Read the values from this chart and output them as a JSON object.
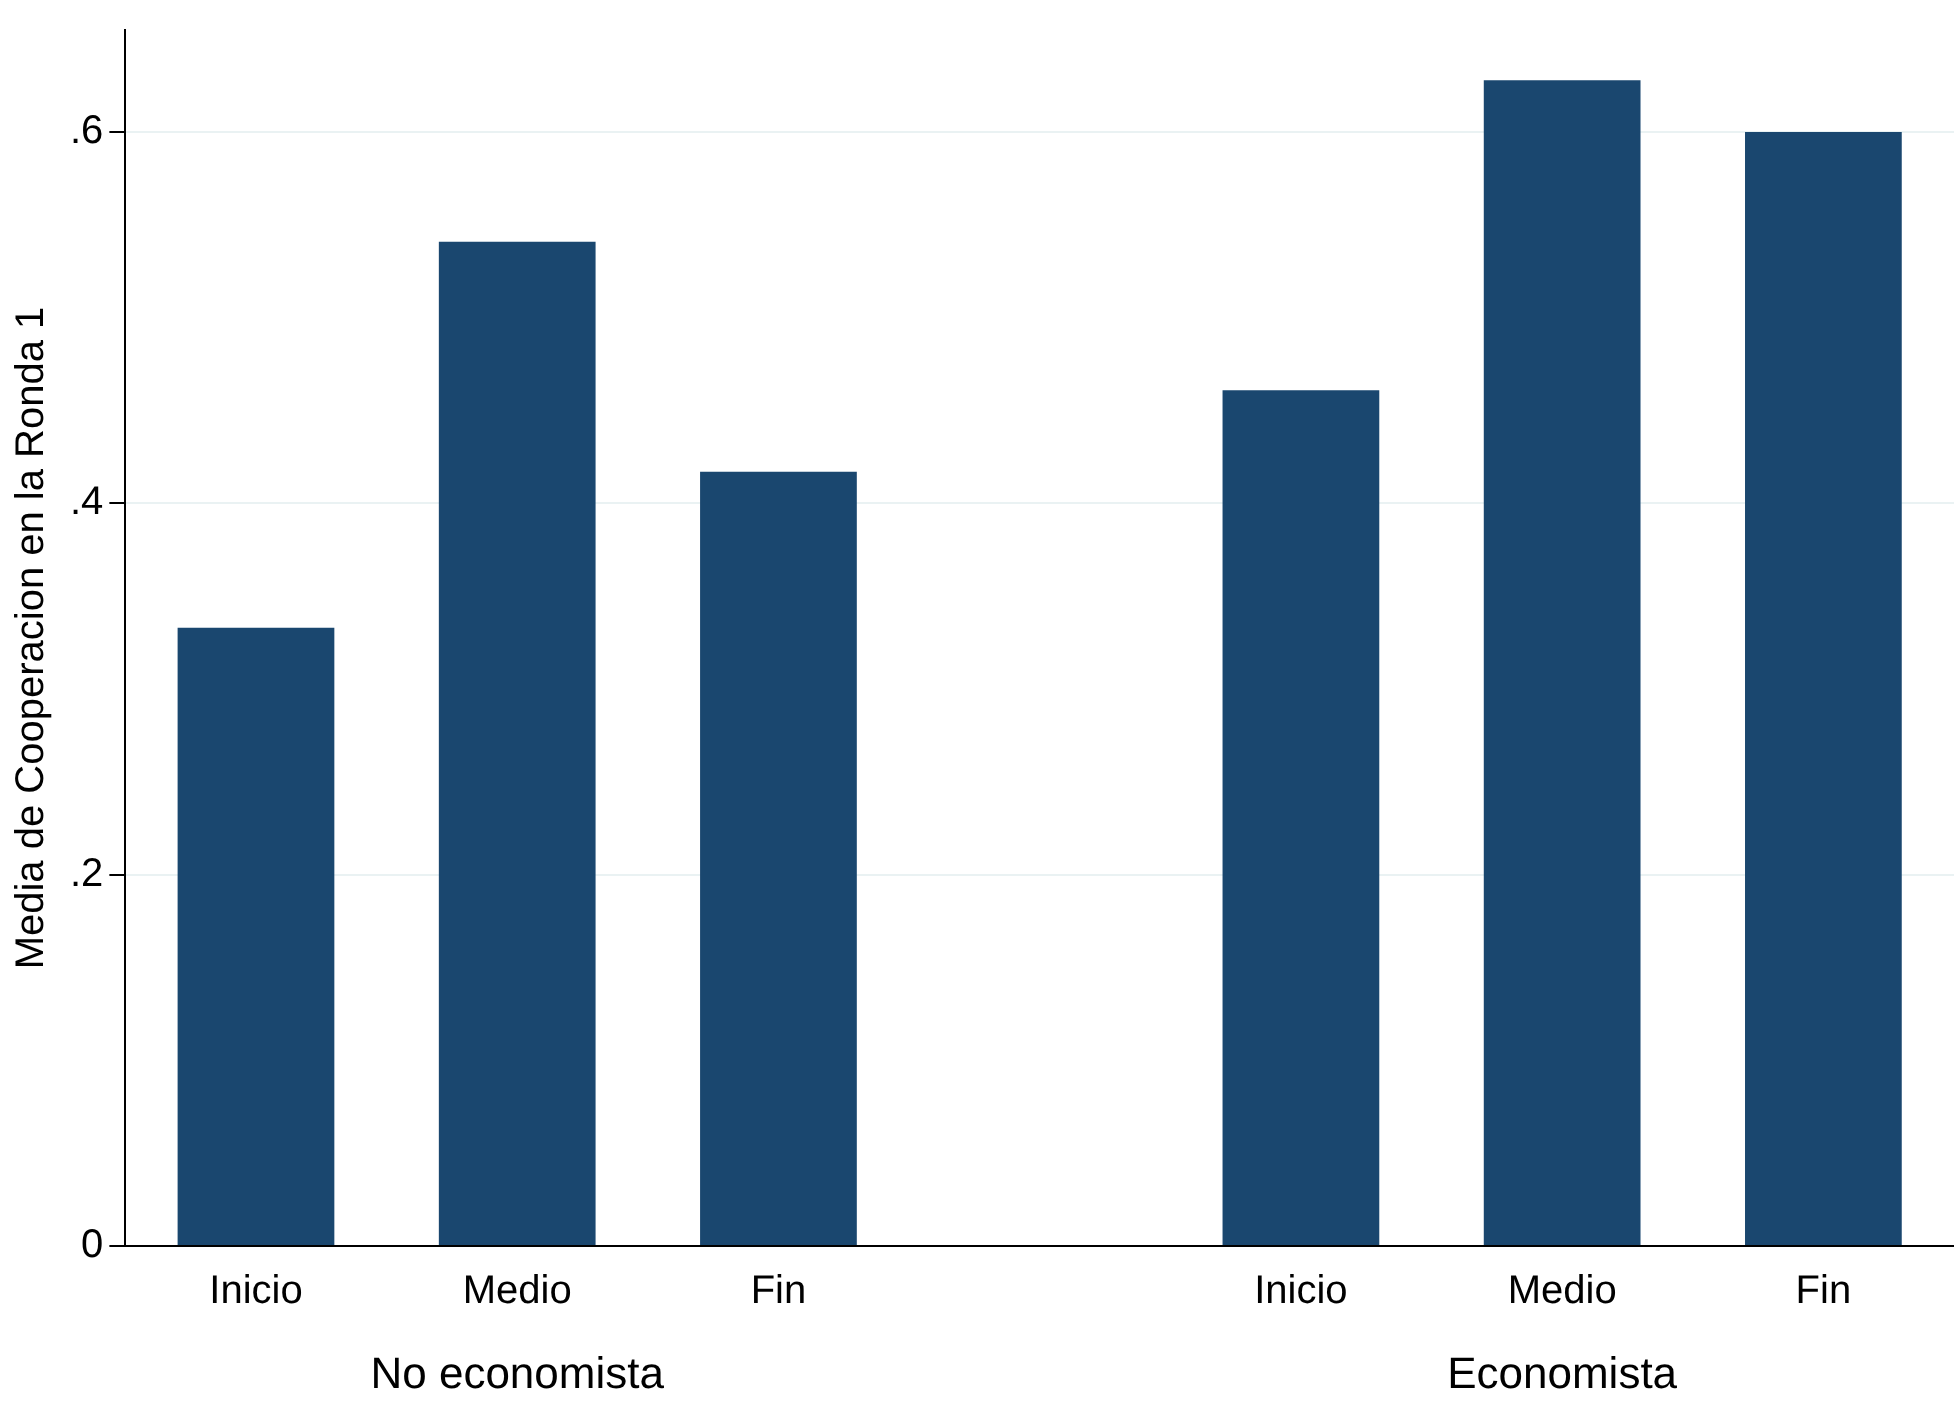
{
  "chart_data": {
    "type": "bar",
    "ylabel": "Media de Cooperacion en la Ronda 1",
    "categories": [
      "Inicio",
      "Medio",
      "Fin",
      null,
      "Inicio",
      "Medio",
      "Fin"
    ],
    "values": [
      0.333,
      0.541,
      0.417,
      null,
      0.461,
      0.628,
      0.6
    ],
    "color": "#1a476f",
    "ylim": [
      0,
      0.655
    ],
    "yticks": [
      {
        "value": 0,
        "label": "0"
      },
      {
        "value": 0.2,
        "label": ".2"
      },
      {
        "value": 0.4,
        "label": ".4"
      },
      {
        "value": 0.6,
        "label": ".6"
      }
    ],
    "grid": "y",
    "annotations": [
      "No economista",
      "Economista"
    ]
  }
}
